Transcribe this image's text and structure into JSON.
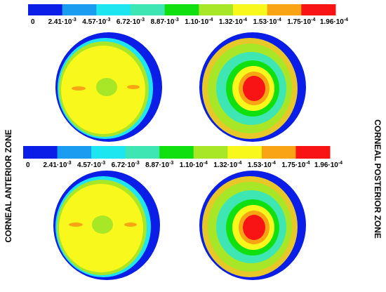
{
  "colorbars": [
    {
      "colors": [
        "#0a1ee8",
        "#1a9cf0",
        "#1ee6f0",
        "#3ee6b4",
        "#10e010",
        "#a8e628",
        "#f8f81c",
        "#f8a414",
        "#f81414"
      ],
      "labels": [
        {
          "base": "0"
        },
        {
          "base": "2.41·10",
          "exp": "-3"
        },
        {
          "base": "4.57·10",
          "exp": "-3"
        },
        {
          "base": "6.72·10",
          "exp": "-3"
        },
        {
          "base": "8.87·10",
          "exp": "-3"
        },
        {
          "base": "1.10·10",
          "exp": "-4"
        },
        {
          "base": "1.32·10",
          "exp": "-4"
        },
        {
          "base": "1.53·10",
          "exp": "-4"
        },
        {
          "base": "1.75·10",
          "exp": "-4"
        },
        {
          "base": "1.96·10",
          "exp": "-4"
        }
      ]
    },
    {
      "colors": [
        "#0a1ee8",
        "#1a9cf0",
        "#1ee6f0",
        "#3ee6b4",
        "#10e010",
        "#a8e628",
        "#f8f81c",
        "#f8a414",
        "#f81414"
      ],
      "labels": [
        {
          "base": "0"
        },
        {
          "base": "2.41·10",
          "exp": "-3"
        },
        {
          "base": "4.57·10",
          "exp": "-3"
        },
        {
          "base": "6.72·10",
          "exp": "-3"
        },
        {
          "base": "8.87·10",
          "exp": "-3"
        },
        {
          "base": "1.10·10",
          "exp": "-4"
        },
        {
          "base": "1.32·10",
          "exp": "-4"
        },
        {
          "base": "1.53·10",
          "exp": "-4"
        },
        {
          "base": "1.75·10",
          "exp": "-4"
        },
        {
          "base": "1.96·10",
          "exp": "-4"
        }
      ]
    }
  ],
  "side_labels": {
    "left": "CORNEAL ANTERIOR ZONE",
    "right": "CORNEAL  POSTERIOR  ZONE"
  }
}
